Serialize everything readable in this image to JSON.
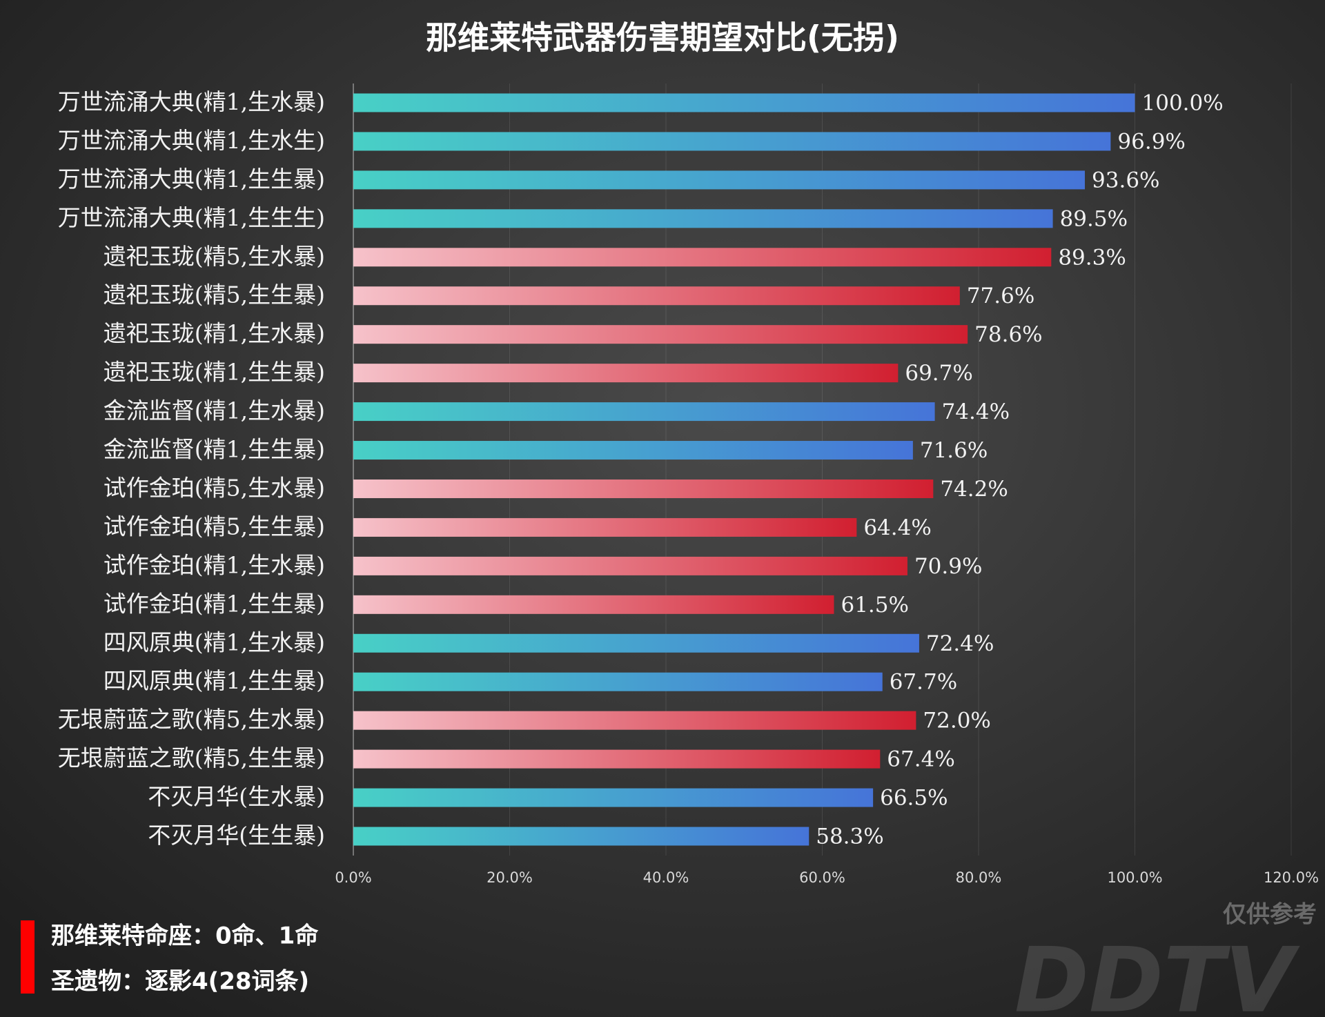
{
  "chart_data": {
    "type": "barh",
    "title": "那维莱特武器伤害期望对比(无拐)",
    "categories": [
      "万世流涌大典(精1,生水暴)",
      "万世流涌大典(精1,生水生)",
      "万世流涌大典(精1,生生暴)",
      "万世流涌大典(精1,生生生)",
      "遗祀玉珑(精5,生水暴)",
      "遗祀玉珑(精5,生生暴)",
      "遗祀玉珑(精1,生水暴)",
      "遗祀玉珑(精1,生生暴)",
      "金流监督(精1,生水暴)",
      "金流监督(精1,生生暴)",
      "试作金珀(精5,生水暴)",
      "试作金珀(精5,生生暴)",
      "试作金珀(精1,生水暴)",
      "试作金珀(精1,生生暴)",
      "四风原典(精1,生水暴)",
      "四风原典(精1,生生暴)",
      "无垠蔚蓝之歌(精5,生水暴)",
      "无垠蔚蓝之歌(精5,生生暴)",
      "不灭月华(生水暴)",
      "不灭月华(生生暴)"
    ],
    "values": [
      100.0,
      96.9,
      93.6,
      89.5,
      89.3,
      77.6,
      78.6,
      69.7,
      74.4,
      71.6,
      74.2,
      64.4,
      70.9,
      61.5,
      72.4,
      67.7,
      72.0,
      67.4,
      66.5,
      58.3
    ],
    "value_labels": [
      "100.0%",
      "96.9%",
      "93.6%",
      "89.5%",
      "89.3%",
      "77.6%",
      "78.6%",
      "69.7%",
      "74.4%",
      "71.6%",
      "74.2%",
      "64.4%",
      "70.9%",
      "61.5%",
      "72.4%",
      "67.7%",
      "72.0%",
      "67.4%",
      "66.5%",
      "58.3%"
    ],
    "gradients": {
      "teal": [
        "#48d0c6",
        "#4674d8"
      ],
      "red": [
        "#f6c2ca",
        "#d11f30"
      ]
    },
    "bar_gradient": [
      "teal",
      "teal",
      "teal",
      "teal",
      "red",
      "red",
      "red",
      "red",
      "teal",
      "teal",
      "red",
      "red",
      "red",
      "red",
      "teal",
      "teal",
      "red",
      "red",
      "teal",
      "teal"
    ],
    "xlim": [
      0,
      120
    ],
    "xticks": [
      {
        "value": 0,
        "label": "0.0%"
      },
      {
        "value": 20,
        "label": "20.0%"
      },
      {
        "value": 40,
        "label": "40.0%"
      },
      {
        "value": 60,
        "label": "60.0%"
      },
      {
        "value": 80,
        "label": "80.0%"
      },
      {
        "value": 100,
        "label": "100.0%"
      },
      {
        "value": 120,
        "label": "120.0%"
      }
    ],
    "grid": true,
    "footer": [
      "那维莱特命座：0命、1命",
      "圣遗物：逐影4(28词条)"
    ],
    "watermark": [
      "仅供参考",
      "DDTV"
    ]
  }
}
